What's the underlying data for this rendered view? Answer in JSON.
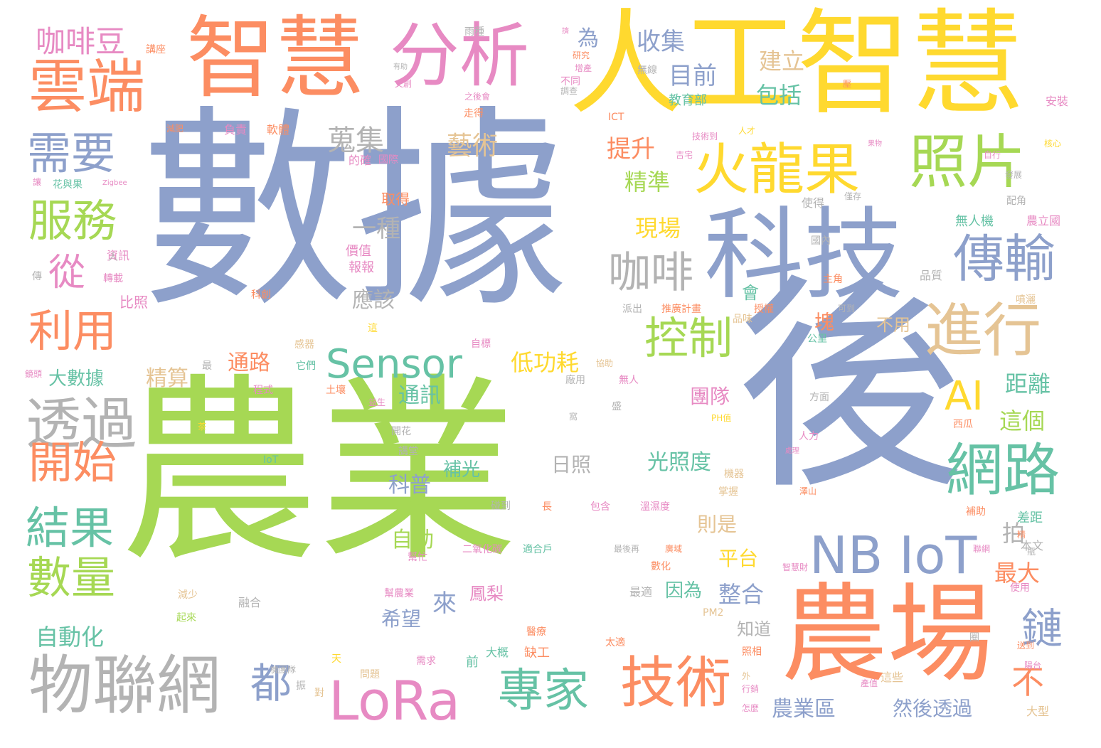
{
  "palette": {
    "blue": "#8da0cb",
    "green": "#a6d854",
    "yellow": "#ffd92f",
    "orange": "#fc8d62",
    "pink": "#e78ac3",
    "teal": "#66c2a5",
    "gray": "#b3b3b3",
    "tan": "#e5c494"
  },
  "words": [
    {
      "text": "數據",
      "color": "blue"
    },
    {
      "text": "農業",
      "color": "green"
    },
    {
      "text": "後",
      "color": "blue"
    },
    {
      "text": "人工智慧",
      "color": "yellow"
    },
    {
      "text": "智慧",
      "color": "orange"
    },
    {
      "text": "分析",
      "color": "pink"
    },
    {
      "text": "科技",
      "color": "blue"
    },
    {
      "text": "農場",
      "color": "orange"
    },
    {
      "text": "火龍果",
      "color": "yellow"
    },
    {
      "text": "照片",
      "color": "green"
    },
    {
      "text": "雲端",
      "color": "orange"
    },
    {
      "text": "物聯網",
      "color": "gray"
    },
    {
      "text": "NB IoT",
      "color": "blue"
    },
    {
      "text": "LoRa",
      "color": "pink"
    },
    {
      "text": "進行",
      "color": "tan"
    },
    {
      "text": "網路",
      "color": "teal"
    },
    {
      "text": "傳輸",
      "color": "blue"
    },
    {
      "text": "透過",
      "color": "gray"
    },
    {
      "text": "Sensor",
      "color": "teal"
    },
    {
      "text": "技術",
      "color": "orange"
    },
    {
      "text": "專家",
      "color": "teal"
    },
    {
      "text": "控制",
      "color": "green"
    },
    {
      "text": "咖啡",
      "color": "gray"
    },
    {
      "text": "需要",
      "color": "blue"
    },
    {
      "text": "服務",
      "color": "green"
    },
    {
      "text": "利用",
      "color": "orange"
    },
    {
      "text": "開始",
      "color": "orange"
    },
    {
      "text": "結果",
      "color": "teal"
    },
    {
      "text": "數量",
      "color": "green"
    },
    {
      "text": "從",
      "color": "pink"
    },
    {
      "text": "AI",
      "color": "yellow"
    },
    {
      "text": "都",
      "color": "blue"
    },
    {
      "text": "咖啡豆",
      "color": "pink"
    },
    {
      "text": "蒐集",
      "color": "gray"
    },
    {
      "text": "藝術",
      "color": "tan"
    },
    {
      "text": "收集",
      "color": "blue"
    },
    {
      "text": "目前",
      "color": "blue"
    },
    {
      "text": "包括",
      "color": "teal"
    },
    {
      "text": "建立",
      "color": "tan"
    },
    {
      "text": "提升",
      "color": "orange"
    },
    {
      "text": "精準",
      "color": "green"
    },
    {
      "text": "現場",
      "color": "yellow"
    },
    {
      "text": "一種",
      "color": "gray"
    },
    {
      "text": "應該",
      "color": "gray"
    },
    {
      "text": "低功耗",
      "color": "yellow"
    },
    {
      "text": "通路",
      "color": "orange"
    },
    {
      "text": "精算",
      "color": "tan"
    },
    {
      "text": "通訊",
      "color": "teal"
    },
    {
      "text": "團隊",
      "color": "pink"
    },
    {
      "text": "距離",
      "color": "teal"
    },
    {
      "text": "這個",
      "color": "green"
    },
    {
      "text": "光照度",
      "color": "teal"
    },
    {
      "text": "日照",
      "color": "gray"
    },
    {
      "text": "補光",
      "color": "teal"
    },
    {
      "text": "科普",
      "color": "blue"
    },
    {
      "text": "自動",
      "color": "green"
    },
    {
      "text": "則是",
      "color": "tan"
    },
    {
      "text": "平台",
      "color": "yellow"
    },
    {
      "text": "整合",
      "color": "blue"
    },
    {
      "text": "最大",
      "color": "orange"
    },
    {
      "text": "鏈",
      "color": "blue"
    },
    {
      "text": "不",
      "color": "orange"
    },
    {
      "text": "拍",
      "color": "gray"
    },
    {
      "text": "大數據",
      "color": "teal"
    },
    {
      "text": "自動化",
      "color": "teal"
    },
    {
      "text": "來",
      "color": "blue"
    },
    {
      "text": "希望",
      "color": "blue"
    },
    {
      "text": "鳳梨",
      "color": "pink"
    },
    {
      "text": "因為",
      "color": "teal"
    },
    {
      "text": "知道",
      "color": "gray"
    },
    {
      "text": "農業區",
      "color": "blue"
    },
    {
      "text": "然後透過",
      "color": "blue"
    },
    {
      "text": "為",
      "color": "blue"
    },
    {
      "text": "無線",
      "color": "gray"
    },
    {
      "text": "教育部",
      "color": "teal"
    },
    {
      "text": "不用",
      "color": "tan"
    },
    {
      "text": "比照",
      "color": "pink"
    },
    {
      "text": "報報",
      "color": "pink"
    },
    {
      "text": "價值",
      "color": "pink"
    },
    {
      "text": "取得",
      "color": "orange"
    },
    {
      "text": "講座",
      "color": "orange"
    },
    {
      "text": "雨種",
      "color": "gray"
    },
    {
      "text": "ICT",
      "color": "orange"
    },
    {
      "text": "負責",
      "color": "pink"
    },
    {
      "text": "軟體",
      "color": "orange"
    },
    {
      "text": "走得",
      "color": "orange"
    },
    {
      "text": "之後會",
      "color": "pink"
    },
    {
      "text": "安裝",
      "color": "pink"
    },
    {
      "text": "配角",
      "color": "gray"
    },
    {
      "text": "無人機",
      "color": "teal"
    },
    {
      "text": "農立國",
      "color": "pink"
    },
    {
      "text": "國內",
      "color": "gray"
    },
    {
      "text": "主角",
      "color": "orange"
    },
    {
      "text": "品質",
      "color": "gray"
    },
    {
      "text": "噴灑",
      "color": "tan"
    },
    {
      "text": "使得",
      "color": "gray"
    },
    {
      "text": "花與果",
      "color": "teal"
    },
    {
      "text": "Zigbee",
      "color": "pink"
    },
    {
      "text": "資訊",
      "color": "pink"
    },
    {
      "text": "轉載",
      "color": "pink"
    },
    {
      "text": "傳",
      "color": "gray"
    },
    {
      "text": "科創",
      "color": "orange"
    },
    {
      "text": "推廣計畫",
      "color": "orange"
    },
    {
      "text": "派出",
      "color": "gray"
    },
    {
      "text": "授權",
      "color": "orange"
    },
    {
      "text": "品味",
      "color": "tan"
    },
    {
      "text": "可到",
      "color": "gray"
    },
    {
      "text": "公里",
      "color": "teal"
    },
    {
      "text": "方面",
      "color": "gray"
    },
    {
      "text": "西瓜",
      "color": "orange"
    },
    {
      "text": "人力",
      "color": "pink"
    },
    {
      "text": "會",
      "color": "teal"
    },
    {
      "text": "塊",
      "color": "orange"
    },
    {
      "text": "無人",
      "color": "pink"
    },
    {
      "text": "感器",
      "color": "tan"
    },
    {
      "text": "它們",
      "color": "teal"
    },
    {
      "text": "程式",
      "color": "pink"
    },
    {
      "text": "土壤",
      "color": "orange"
    },
    {
      "text": "自標",
      "color": "pink"
    },
    {
      "text": "最",
      "color": "gray"
    },
    {
      "text": "機器",
      "color": "tan"
    },
    {
      "text": "掌握",
      "color": "tan"
    },
    {
      "text": "辦理",
      "color": "green"
    },
    {
      "text": "碰到",
      "color": "gray"
    },
    {
      "text": "長",
      "color": "orange"
    },
    {
      "text": "包含",
      "color": "pink"
    },
    {
      "text": "溫濕度",
      "color": "pink"
    },
    {
      "text": "開花",
      "color": "gray"
    },
    {
      "text": "講堂",
      "color": "gray"
    },
    {
      "text": "IoT",
      "color": "teal"
    },
    {
      "text": "PH值",
      "color": "yellow"
    },
    {
      "text": "補助",
      "color": "orange"
    },
    {
      "text": "差距",
      "color": "teal"
    },
    {
      "text": "本文",
      "color": "gray"
    },
    {
      "text": "二氧化碳",
      "color": "pink"
    },
    {
      "text": "適合戶",
      "color": "teal"
    },
    {
      "text": "最後再",
      "color": "gray"
    },
    {
      "text": "廣域",
      "color": "orange"
    },
    {
      "text": "幫忙",
      "color": "pink"
    },
    {
      "text": "幫農業",
      "color": "pink"
    },
    {
      "text": "減少",
      "color": "tan"
    },
    {
      "text": "融合",
      "color": "gray"
    },
    {
      "text": "起來",
      "color": "green"
    },
    {
      "text": "最適",
      "color": "gray"
    },
    {
      "text": "使用",
      "color": "pink"
    },
    {
      "text": "PM2",
      "color": "tan"
    },
    {
      "text": "大概",
      "color": "teal"
    },
    {
      "text": "缺工",
      "color": "orange"
    },
    {
      "text": "機團隊",
      "color": "gray"
    },
    {
      "text": "天",
      "color": "yellow"
    },
    {
      "text": "問題",
      "color": "tan"
    },
    {
      "text": "需求",
      "color": "pink"
    },
    {
      "text": "前",
      "color": "teal"
    },
    {
      "text": "醫療",
      "color": "orange"
    },
    {
      "text": "照相",
      "color": "orange"
    },
    {
      "text": "太適",
      "color": "orange"
    },
    {
      "text": "外",
      "color": "tan"
    },
    {
      "text": "行銷",
      "color": "pink"
    },
    {
      "text": "怎麼",
      "color": "pink"
    },
    {
      "text": "這些",
      "color": "tan"
    },
    {
      "text": "產值",
      "color": "pink"
    },
    {
      "text": "大型",
      "color": "tan"
    },
    {
      "text": "不同",
      "color": "pink"
    },
    {
      "text": "人才",
      "color": "yellow"
    },
    {
      "text": "技術到",
      "color": "pink"
    },
    {
      "text": "的確",
      "color": "pink"
    },
    {
      "text": "人",
      "color": "gray"
    },
    {
      "text": "這",
      "color": "yellow"
    },
    {
      "text": "對",
      "color": "tan"
    },
    {
      "text": "振",
      "color": "gray"
    },
    {
      "text": "瓶",
      "color": "gray"
    },
    {
      "text": "數化",
      "color": "orange"
    },
    {
      "text": "圈",
      "color": "gray"
    },
    {
      "text": "盛",
      "color": "gray"
    },
    {
      "text": "窩",
      "color": "gray"
    },
    {
      "text": "廠用",
      "color": "gray"
    },
    {
      "text": "聯網",
      "color": "pink"
    },
    {
      "text": "智慧財",
      "color": "pink"
    },
    {
      "text": "送到",
      "color": "orange"
    },
    {
      "text": "精",
      "color": "orange"
    },
    {
      "text": "擠",
      "color": "pink"
    },
    {
      "text": "壓",
      "color": "orange"
    },
    {
      "text": "吉宅",
      "color": "pink"
    },
    {
      "text": "僅存",
      "color": "gray"
    },
    {
      "text": "發展",
      "color": "gray"
    },
    {
      "text": "處理",
      "color": "pink"
    },
    {
      "text": "國際",
      "color": "pink"
    },
    {
      "text": "自行",
      "color": "pink"
    },
    {
      "text": "讓",
      "color": "pink"
    },
    {
      "text": "文創",
      "color": "pink"
    },
    {
      "text": "研究",
      "color": "orange"
    },
    {
      "text": "增產",
      "color": "pink"
    },
    {
      "text": "減肥",
      "color": "orange"
    },
    {
      "text": "有助",
      "color": "gray"
    },
    {
      "text": "調查",
      "color": "gray"
    },
    {
      "text": "鏡頭",
      "color": "pink"
    },
    {
      "text": "果物",
      "color": "pink"
    },
    {
      "text": "協助",
      "color": "tan"
    },
    {
      "text": "核心",
      "color": "yellow"
    },
    {
      "text": "益生",
      "color": "pink"
    },
    {
      "text": "茶",
      "color": "yellow"
    },
    {
      "text": "澤山",
      "color": "orange"
    },
    {
      "text": "陽台",
      "color": "pink"
    },
    {
      "text": "搖擺",
      "color": "pink"
    },
    {
      "text": "國家",
      "color": "orange"
    }
  ]
}
